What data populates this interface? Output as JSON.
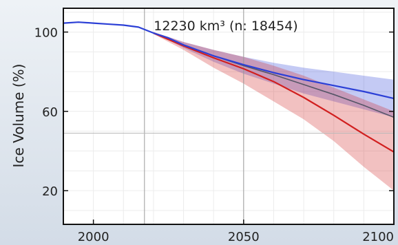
{
  "chart_data": {
    "type": "area",
    "title": "",
    "annotation": "12230 km³ (n: 18454)",
    "ylabel": "Ice Volume (%)",
    "xlabel": "",
    "xlim": [
      1990,
      2100
    ],
    "ylim": [
      3,
      112
    ],
    "xticks": [
      "2000",
      "2050",
      "2100"
    ],
    "yticks": [
      "20",
      "60",
      "100"
    ],
    "ref_lines": {
      "vertical": [
        2017,
        2050
      ],
      "horizontal": [
        49
      ]
    },
    "grid": true,
    "colors": {
      "blue": "#2b3fd6",
      "red": "#d11f1f",
      "dark": "#555566"
    },
    "series": [
      {
        "color": "blue",
        "x": [
          1990,
          1995,
          2000,
          2005,
          2010,
          2015,
          2020,
          2025,
          2030,
          2040,
          2050,
          2060,
          2070,
          2080,
          2090,
          2100
        ],
        "values": [
          104.5,
          105,
          104.5,
          104,
          103.5,
          102.5,
          99.5,
          97,
          93.5,
          88,
          83.5,
          79.5,
          76,
          73,
          70,
          66.5
        ],
        "band_upper": [
          null,
          null,
          null,
          null,
          null,
          null,
          100,
          97.5,
          95,
          91,
          87.5,
          84.5,
          82,
          80,
          78,
          76
        ],
        "band_lower": [
          null,
          null,
          null,
          null,
          null,
          null,
          99,
          96,
          92,
          85,
          79,
          74,
          69,
          65,
          61,
          57
        ]
      },
      {
        "color": "red",
        "x": [
          2020,
          2030,
          2040,
          2050,
          2060,
          2070,
          2080,
          2090,
          2100
        ],
        "values": [
          99.5,
          93,
          87,
          81.5,
          75,
          67,
          58,
          48.5,
          39.5
        ],
        "band_upper": [
          100,
          95,
          91,
          87.5,
          83,
          78,
          72,
          66,
          60
        ],
        "band_lower": [
          99,
          91,
          82,
          74,
          65,
          56,
          45,
          32,
          20
        ]
      },
      {
        "color": "dark",
        "x": [
          2020,
          2030,
          2040,
          2050,
          2060,
          2070,
          2080,
          2090,
          2100
        ],
        "values": [
          99.5,
          93.5,
          88,
          83,
          78.5,
          73.5,
          68.5,
          63,
          57
        ]
      }
    ]
  }
}
